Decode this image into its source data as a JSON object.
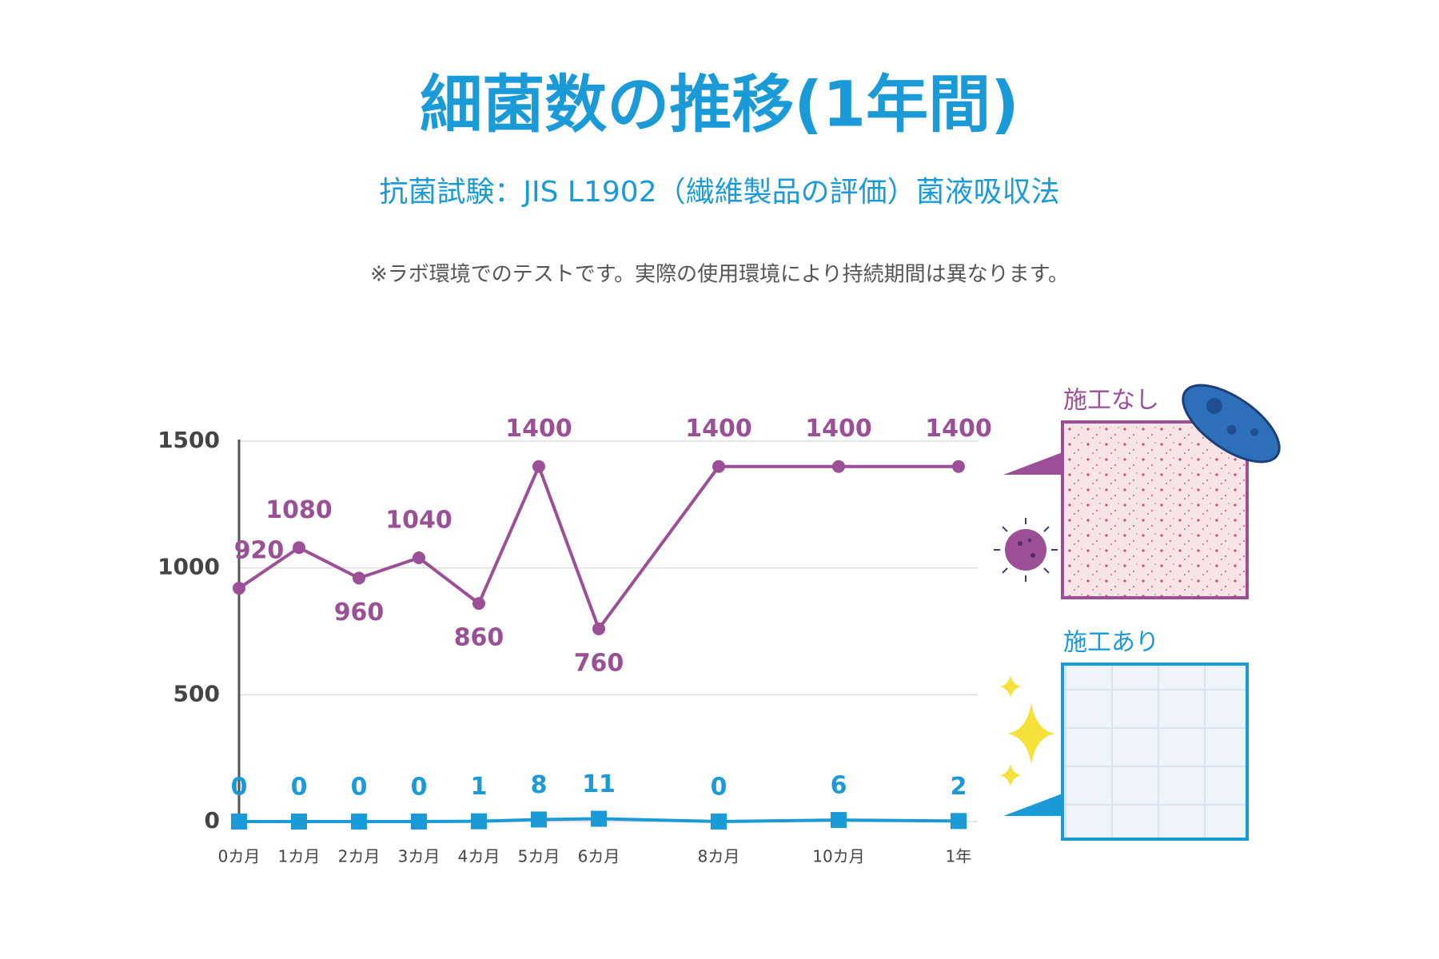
{
  "chart_data": {
    "type": "line",
    "title": "細菌数の推移(1年間)",
    "subtitle": "抗菌試験：JIS L1902（繊維製品の評価）菌液吸収法",
    "note": "※ラボ環境でのテストです。実際の使用環境により持続期間は異なります。",
    "x": [
      0,
      1,
      2,
      3,
      4,
      5,
      6,
      8,
      10,
      12
    ],
    "xlim": [
      0,
      12
    ],
    "xticks": [
      {
        "value": 0,
        "label": "0カ月"
      },
      {
        "value": 1,
        "label": "1カ月"
      },
      {
        "value": 2,
        "label": "2カ月"
      },
      {
        "value": 3,
        "label": "3カ月"
      },
      {
        "value": 4,
        "label": "4カ月"
      },
      {
        "value": 5,
        "label": "5カ月"
      },
      {
        "value": 6,
        "label": "6カ月"
      },
      {
        "value": 8,
        "label": "8カ月"
      },
      {
        "value": 10,
        "label": "10カ月"
      },
      {
        "value": 12,
        "label": "1年"
      }
    ],
    "ylim": [
      0,
      1500
    ],
    "yticks": [
      0,
      500,
      1000,
      1500
    ],
    "grid": true,
    "series": [
      {
        "name": "施工なし",
        "color": "#9b4f96",
        "marker": "circle",
        "values": [
          920,
          1080,
          960,
          1040,
          860,
          1400,
          760,
          1400,
          1400,
          1400
        ]
      },
      {
        "name": "施工あり",
        "color": "#1a9ad6",
        "marker": "square",
        "values": [
          0,
          0,
          0,
          0,
          1,
          8,
          11,
          0,
          6,
          2
        ]
      }
    ]
  }
}
